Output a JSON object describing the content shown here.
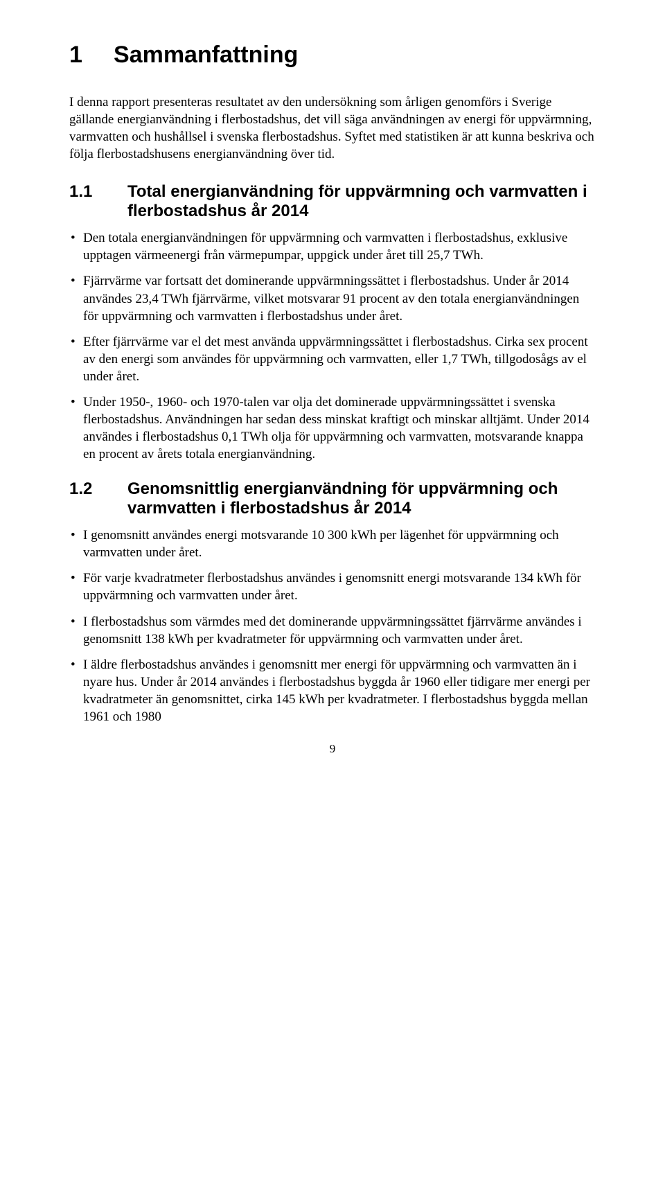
{
  "chapter": {
    "number": "1",
    "title": "Sammanfattning",
    "intro": "I denna rapport presenteras resultatet av den undersökning som årligen genomförs i Sverige gällande energianvändning i flerbostadshus, det vill säga användningen av energi för uppvärmning, varmvatten och hushållsel i svenska flerbostadshus. Syftet med statistiken är att kunna beskriva och följa flerbostadshusens energianvändning över tid."
  },
  "section1": {
    "number": "1.1",
    "title": "Total energianvändning för uppvärmning och varmvatten i flerbostadshus år 2014",
    "bullets": [
      "Den totala energianvändningen för uppvärmning och varmvatten i flerbostadshus, exklusive upptagen värmeenergi från värmepumpar, uppgick under året till 25,7 TWh.",
      "Fjärrvärme var fortsatt det dominerande uppvärmningssättet i flerbostadshus. Under år 2014 användes 23,4 TWh fjärrvärme, vilket motsvarar 91 procent av den totala energianvändningen för uppvärmning och varmvatten i flerbostadshus under året.",
      "Efter fjärrvärme var el det mest använda uppvärmningssättet i flerbostadshus. Cirka sex procent av den energi som användes för uppvärmning och varmvatten, eller 1,7 TWh, tillgodosågs av el under året.",
      "Under 1950-, 1960- och 1970-talen var olja det dominerade uppvärmningssättet i svenska flerbostadshus. Användningen har sedan dess minskat kraftigt och minskar alltjämt. Under 2014 användes i flerbostadshus 0,1 TWh olja för uppvärmning och varmvatten, motsvarande knappa en procent av årets totala energianvändning."
    ]
  },
  "section2": {
    "number": "1.2",
    "title": "Genomsnittlig energianvändning för uppvärmning och varmvatten i flerbostadshus år 2014",
    "bullets": [
      "I genomsnitt användes energi motsvarande 10 300 kWh per lägenhet för uppvärmning och varmvatten under året.",
      "För varje kvadratmeter flerbostadshus användes i genomsnitt energi motsvarande 134 kWh för uppvärmning och varmvatten under året.",
      "I flerbostadshus som värmdes med det dominerande uppvärmningssättet fjärrvärme användes i genomsnitt 138 kWh per kvadratmeter för uppvärmning och varmvatten under året.",
      "I äldre flerbostadshus användes i genomsnitt mer energi för uppvärmning och varmvatten än i nyare hus. Under år 2014 användes i flerbostadshus byggda år 1960 eller tidigare mer energi per kvadratmeter än genomsnittet, cirka 145 kWh per kvadratmeter. I flerbostadshus byggda mellan 1961 och 1980"
    ]
  },
  "page_number": "9"
}
